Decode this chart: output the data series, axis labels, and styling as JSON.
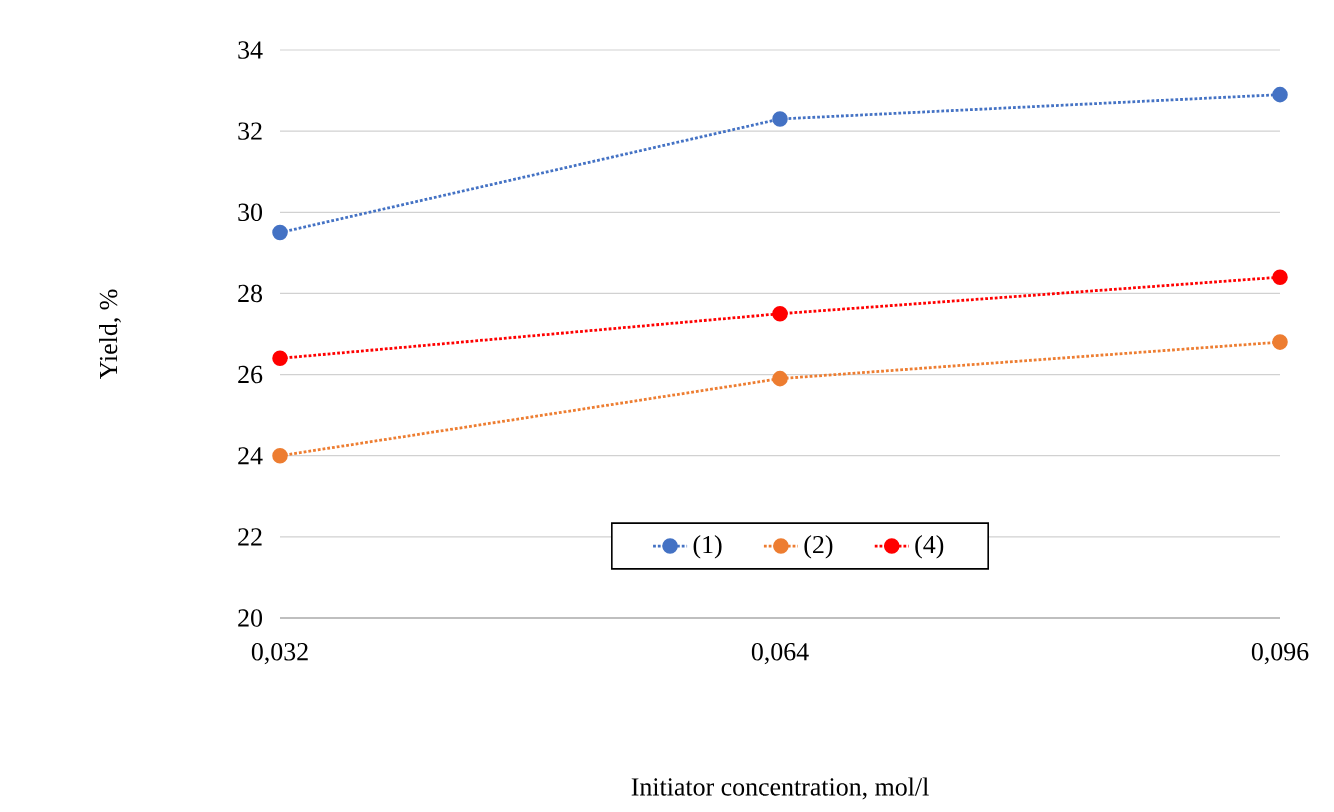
{
  "chart_data": {
    "type": "line",
    "xlabel": "Initiator concentration, mol/l",
    "ylabel": "Yield, %",
    "categories": [
      "0,032",
      "0,064",
      "0,096"
    ],
    "series": [
      {
        "name": "(1)",
        "color": "#4472c4",
        "values": [
          29.5,
          32.3,
          32.9
        ]
      },
      {
        "name": "(2)",
        "color": "#ed7d31",
        "values": [
          24.0,
          25.9,
          26.8
        ]
      },
      {
        "name": "(4)",
        "color": "#ff0000",
        "values": [
          26.4,
          27.5,
          28.4
        ]
      }
    ],
    "ylim": [
      20,
      34
    ],
    "yticks": [
      20,
      22,
      24,
      26,
      28,
      30,
      32,
      34
    ],
    "grid": "y",
    "legend": "bottom",
    "marker": "circle",
    "line_style": "dotted"
  }
}
